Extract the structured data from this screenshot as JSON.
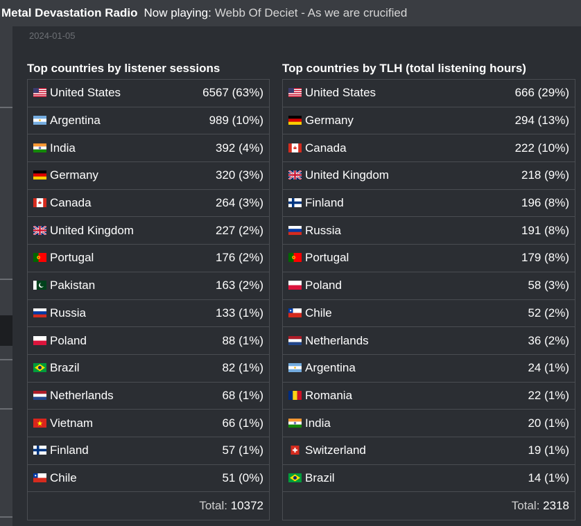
{
  "header": {
    "station": "Metal Devastation Radio",
    "now_playing_label": "Now playing:",
    "track": "Webb Of Deciet - As we are crucified"
  },
  "date": "2024-01-05",
  "sessions": {
    "title": "Top countries by listener sessions",
    "rows": [
      {
        "country": "United States",
        "flag": "us-flag",
        "value": "6567 (63%)"
      },
      {
        "country": "Argentina",
        "flag": "ar-flag",
        "value": "989 (10%)"
      },
      {
        "country": "India",
        "flag": "in-flag",
        "value": "392 (4%)"
      },
      {
        "country": "Germany",
        "flag": "de-flag",
        "value": "320 (3%)"
      },
      {
        "country": "Canada",
        "flag": "ca-flag",
        "value": "264 (3%)"
      },
      {
        "country": "United Kingdom",
        "flag": "gb-flag",
        "value": "227 (2%)"
      },
      {
        "country": "Portugal",
        "flag": "pt-flag",
        "value": "176 (2%)"
      },
      {
        "country": "Pakistan",
        "flag": "pk-flag",
        "value": "163 (2%)"
      },
      {
        "country": "Russia",
        "flag": "ru-flag",
        "value": "133 (1%)"
      },
      {
        "country": "Poland",
        "flag": "pl-flag",
        "value": "88 (1%)"
      },
      {
        "country": "Brazil",
        "flag": "br-flag",
        "value": "82 (1%)"
      },
      {
        "country": "Netherlands",
        "flag": "nl-flag",
        "value": "68 (1%)"
      },
      {
        "country": "Vietnam",
        "flag": "vn-flag",
        "value": "66 (1%)"
      },
      {
        "country": "Finland",
        "flag": "fi-flag",
        "value": "57 (1%)"
      },
      {
        "country": "Chile",
        "flag": "cl-flag",
        "value": "51 (0%)"
      }
    ],
    "total_label": "Total:",
    "total_value": "10372"
  },
  "tlh": {
    "title": "Top countries by TLH (total listening hours)",
    "rows": [
      {
        "country": "United States",
        "flag": "us-flag",
        "value": "666 (29%)"
      },
      {
        "country": "Germany",
        "flag": "de-flag",
        "value": "294 (13%)"
      },
      {
        "country": "Canada",
        "flag": "ca-flag",
        "value": "222 (10%)"
      },
      {
        "country": "United Kingdom",
        "flag": "gb-flag",
        "value": "218 (9%)"
      },
      {
        "country": "Finland",
        "flag": "fi-flag",
        "value": "196 (8%)"
      },
      {
        "country": "Russia",
        "flag": "ru-flag",
        "value": "191 (8%)"
      },
      {
        "country": "Portugal",
        "flag": "pt-flag",
        "value": "179 (8%)"
      },
      {
        "country": "Poland",
        "flag": "pl-flag",
        "value": "58 (3%)"
      },
      {
        "country": "Chile",
        "flag": "cl-flag",
        "value": "52 (2%)"
      },
      {
        "country": "Netherlands",
        "flag": "nl-flag",
        "value": "36 (2%)"
      },
      {
        "country": "Argentina",
        "flag": "ar-flag",
        "value": "24 (1%)"
      },
      {
        "country": "Romania",
        "flag": "ro-flag",
        "value": "22 (1%)"
      },
      {
        "country": "India",
        "flag": "in-flag",
        "value": "20 (1%)"
      },
      {
        "country": "Switzerland",
        "flag": "ch-flag",
        "value": "19 (1%)"
      },
      {
        "country": "Brazil",
        "flag": "br-flag",
        "value": "14 (1%)"
      }
    ],
    "total_label": "Total:",
    "total_value": "2318"
  }
}
